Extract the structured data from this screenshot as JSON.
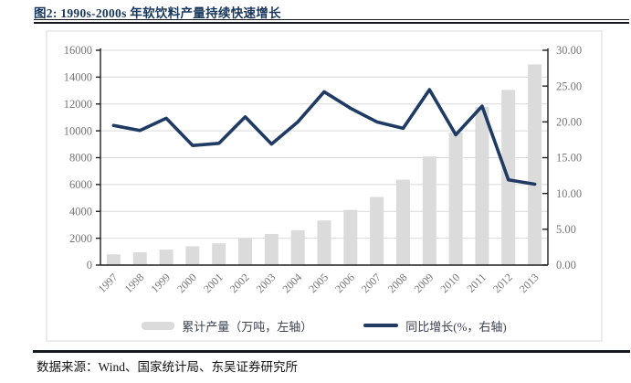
{
  "page": {
    "title": "图2:  1990s-2000s 年软饮料产量持续快速增长",
    "source_note": "数据来源：Wind、国家统计局、东吴证券研究所"
  },
  "colors": {
    "accent_navy": "#1f3a63",
    "title_navy": "#17365d",
    "bar_gray": "#dbdbdb",
    "grid_gray": "#d9d9d9",
    "axis_dark": "#1f1f1f",
    "tick_text_gray": "#767676",
    "legend_text": "#3d4152"
  },
  "chart_data": {
    "type": "combo",
    "categories": [
      "1997",
      "1998",
      "1999",
      "2000",
      "2001",
      "2002",
      "2003",
      "2004",
      "2005",
      "2006",
      "2007",
      "2008",
      "2009",
      "2010",
      "2011",
      "2012",
      "2013"
    ],
    "series": [
      {
        "name": "累计产量（万吨，左轴）",
        "type": "bar",
        "axis": "left",
        "values": [
          800,
          950,
          1150,
          1400,
          1620,
          2000,
          2320,
          2600,
          3320,
          4110,
          5070,
          6360,
          8090,
          9870,
          11800,
          13050,
          14950
        ]
      },
      {
        "name": "同比增长(%，右轴)",
        "type": "line",
        "axis": "right",
        "values": [
          19.5,
          18.8,
          20.5,
          16.7,
          17.0,
          20.7,
          16.9,
          20.0,
          24.2,
          21.9,
          20.0,
          19.1,
          24.5,
          18.2,
          22.2,
          11.9,
          11.3
        ]
      }
    ],
    "left_axis": {
      "min": 0,
      "max": 16000,
      "step": 2000,
      "tick_labels": [
        "0",
        "2000",
        "4000",
        "6000",
        "8000",
        "10000",
        "12000",
        "14000",
        "16000"
      ]
    },
    "right_axis": {
      "min": 0,
      "max": 30,
      "step": 5,
      "tick_labels": [
        "0.00",
        "5.00",
        "10.00",
        "15.00",
        "20.00",
        "25.00",
        "30.00"
      ]
    },
    "grid": "horizontal",
    "legend_position": "bottom"
  }
}
